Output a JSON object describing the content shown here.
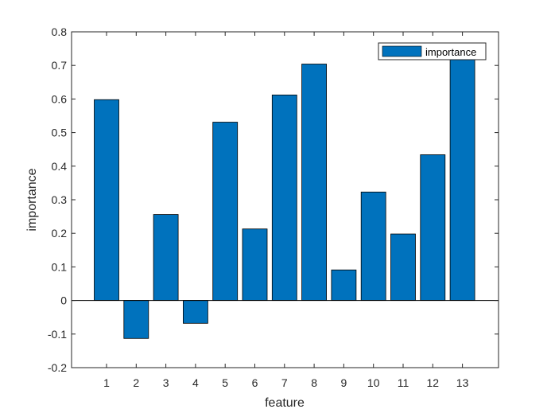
{
  "chart_data": {
    "type": "bar",
    "categories": [
      "1",
      "2",
      "3",
      "4",
      "5",
      "6",
      "7",
      "8",
      "9",
      "10",
      "11",
      "12",
      "13"
    ],
    "series": [
      {
        "name": "importance",
        "values": [
          0.598,
          -0.113,
          0.256,
          -0.068,
          0.531,
          0.213,
          0.612,
          0.704,
          0.091,
          0.323,
          0.198,
          0.434,
          0.722
        ]
      }
    ],
    "xlabel": "feature",
    "ylabel": "importance",
    "ylim": [
      -0.2,
      0.8
    ],
    "yticks": [
      "-0.2",
      "-0.1",
      "0",
      "0.1",
      "0.2",
      "0.3",
      "0.4",
      "0.5",
      "0.6",
      "0.7",
      "0.8"
    ],
    "grid": false,
    "legend": "top-right",
    "bar_color": "#0072BD"
  }
}
